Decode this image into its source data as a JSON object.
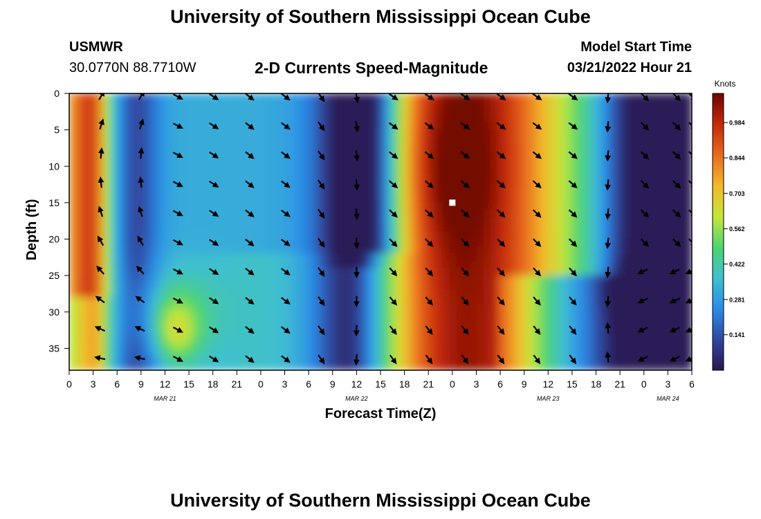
{
  "header": {
    "title": "University of Southern Mississippi Ocean Cube",
    "station": "USMWR",
    "coords": "30.0770N  88.7710W",
    "subtitle": "2-D Currents Speed-Magnitude",
    "model_label": "Model Start Time",
    "model_time": "03/21/2022 Hour 21"
  },
  "footer": {
    "title": "University of Southern Mississippi Ocean Cube"
  },
  "chart_data": {
    "type": "heatmap",
    "xlabel": "Forecast Time(Z)",
    "ylabel": "Depth (ft)",
    "x_tick_labels": [
      "0",
      "3",
      "6",
      "9",
      "12",
      "15",
      "18",
      "21",
      "0",
      "3",
      "6",
      "9",
      "12",
      "15",
      "18",
      "21",
      "0",
      "3",
      "6",
      "9",
      "12",
      "15",
      "18",
      "21",
      "0",
      "3",
      "6"
    ],
    "date_labels": [
      {
        "label": "MAR 21",
        "hour": 12
      },
      {
        "label": "MAR 22",
        "hour": 36
      },
      {
        "label": "MAR 23",
        "hour": 60
      },
      {
        "label": "MAR 24",
        "hour": 75
      }
    ],
    "xlim": [
      0,
      78
    ],
    "y_ticks": [
      0,
      5,
      10,
      15,
      20,
      25,
      30,
      35
    ],
    "ylim": [
      0,
      38
    ],
    "colorbar": {
      "unit": "Knots",
      "ticks": [
        "0.984",
        "0.844",
        "0.703",
        "0.562",
        "0.422",
        "0.281",
        "0.141"
      ],
      "tick_values": [
        0.984,
        0.844,
        0.703,
        0.562,
        0.422,
        0.281,
        0.141
      ],
      "range": [
        0.0,
        1.1
      ],
      "colors": [
        "#2a1650",
        "#30479e",
        "#2b8ce8",
        "#3fbfd0",
        "#4fd470",
        "#c4e63b",
        "#f2b92c",
        "#e86a1e",
        "#c42a0b",
        "#6b0600"
      ]
    },
    "marker": {
      "hour": 48,
      "depth": 15,
      "color": "#ffffff"
    },
    "arrow_hours": [
      4,
      9,
      13.5,
      18,
      22.5,
      27,
      31.5,
      36,
      40.5,
      45,
      49.5,
      54,
      58.5,
      63,
      67.5,
      72,
      76,
      78
    ],
    "arrow_depths": [
      0,
      4,
      8,
      12,
      16,
      20,
      24,
      28,
      32,
      36
    ]
  }
}
